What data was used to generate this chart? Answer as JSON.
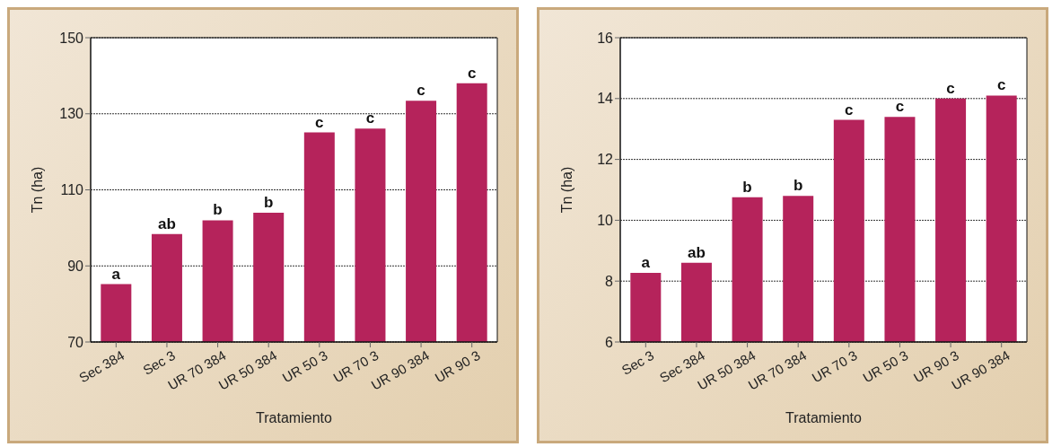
{
  "chart_data": [
    {
      "type": "bar",
      "categories": [
        "Sec 384",
        "Sec 3",
        "UR 70 384",
        "UR 50 384",
        "UR 50 3",
        "UR 70 3",
        "UR 90 384",
        "UR 90 3"
      ],
      "values": [
        85.2,
        98.4,
        102,
        104,
        125.1,
        126.1,
        133.4,
        138
      ],
      "color": "#b5235b",
      "xlabel": "Tratamiento",
      "ylabel": "Tn (ha)",
      "ylim": [
        70,
        150
      ],
      "yticks": [
        70,
        90,
        110,
        130,
        150
      ],
      "grid": "y",
      "legend": false,
      "annotations": [
        {
          "text": "a",
          "x": "Sec 384",
          "y": 85.2
        },
        {
          "text": "ab",
          "x": "Sec 3",
          "y": 98.4
        },
        {
          "text": "b",
          "x": "UR 70 384",
          "y": 102
        },
        {
          "text": "b",
          "x": "UR 50 384",
          "y": 104
        },
        {
          "text": "c",
          "x": "UR 50 3",
          "y": 125.1
        },
        {
          "text": "c",
          "x": "UR 70 3",
          "y": 126.1
        },
        {
          "text": "c",
          "x": "UR 90 384",
          "y": 133.4
        },
        {
          "text": "c",
          "x": "UR 90 3",
          "y": 138
        }
      ]
    },
    {
      "type": "bar",
      "categories": [
        "Sec 3",
        "Sec 384",
        "UR 50 384",
        "UR 70 384",
        "UR 70 3",
        "UR 50 3",
        "UR 90 3",
        "UR 90 384"
      ],
      "values": [
        8.27,
        8.6,
        10.76,
        10.8,
        13.3,
        13.4,
        14.0,
        14.1
      ],
      "color": "#b5235b",
      "xlabel": "Tratamiento",
      "ylabel": "Tn (ha)",
      "ylim": [
        6,
        16
      ],
      "yticks": [
        6,
        8,
        10,
        12,
        14,
        16
      ],
      "grid": "y",
      "legend": false,
      "annotations": [
        {
          "text": "a",
          "x": "Sec 3",
          "y": 8.27
        },
        {
          "text": "ab",
          "x": "Sec 384",
          "y": 8.6
        },
        {
          "text": "b",
          "x": "UR 50 384",
          "y": 10.76
        },
        {
          "text": "b",
          "x": "UR 70 384",
          "y": 10.8
        },
        {
          "text": "c",
          "x": "UR 70 3",
          "y": 13.3
        },
        {
          "text": "c",
          "x": "UR 50 3",
          "y": 13.4
        },
        {
          "text": "c",
          "x": "UR 90 3",
          "y": 14.0
        },
        {
          "text": "c",
          "x": "UR 90 384",
          "y": 14.1
        }
      ]
    }
  ]
}
